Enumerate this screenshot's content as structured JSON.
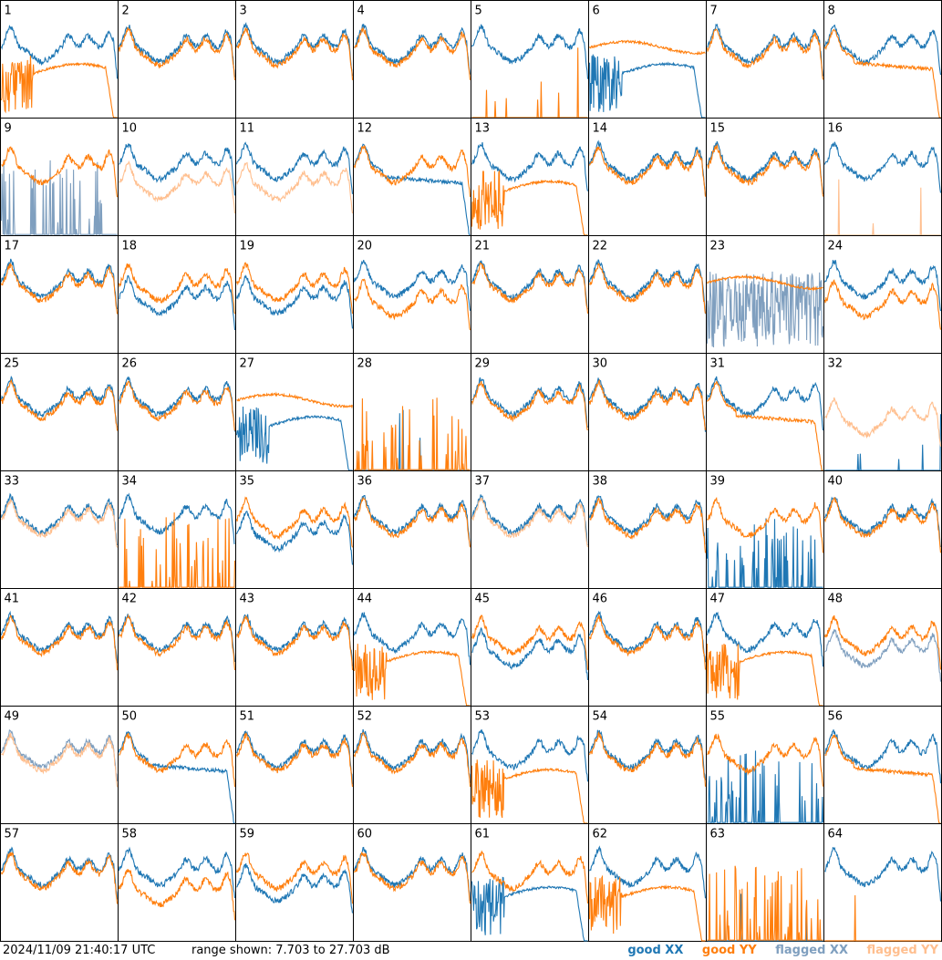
{
  "footer": {
    "timestamp": "2024/11/09 21:40:17 UTC",
    "range_text": "range shown: 7.703 to 27.703 dB"
  },
  "legend": [
    {
      "label": "good XX",
      "color": "#1f77b4"
    },
    {
      "label": "good YY",
      "color": "#ff7f0e"
    },
    {
      "label": "flagged XX",
      "color": "#7f9fbf"
    },
    {
      "label": "flagged YY",
      "color": "#ffbf8f"
    }
  ],
  "chart_data": {
    "type": "line",
    "grid": {
      "rows": 8,
      "cols": 8
    },
    "ylim": [
      7.703,
      27.703
    ],
    "y_units": "dB",
    "panels": [
      {
        "id": "1",
        "xx": "good",
        "yy": "good",
        "xx_shape": "typical",
        "yy_shape": "noisy-then-flat-drop"
      },
      {
        "id": "2",
        "xx": "good",
        "yy": "good",
        "xx_shape": "typical",
        "yy_shape": "typical"
      },
      {
        "id": "3",
        "xx": "good",
        "yy": "good",
        "xx_shape": "typical",
        "yy_shape": "typical"
      },
      {
        "id": "4",
        "xx": "good",
        "yy": "good",
        "xx_shape": "typical",
        "yy_shape": "typical"
      },
      {
        "id": "5",
        "xx": "good",
        "yy": "good",
        "xx_shape": "typical",
        "yy_shape": "dead"
      },
      {
        "id": "6",
        "xx": "good",
        "yy": "good",
        "xx_shape": "noisy-then-flat-drop",
        "yy_shape": "flat-high"
      },
      {
        "id": "7",
        "xx": "good",
        "yy": "good",
        "xx_shape": "typical",
        "yy_shape": "typical"
      },
      {
        "id": "8",
        "xx": "good",
        "yy": "good",
        "xx_shape": "typical",
        "yy_shape": "flat-drop"
      },
      {
        "id": "9",
        "xx": "flagged",
        "yy": "good",
        "xx_shape": "spiky-low",
        "yy_shape": "typical"
      },
      {
        "id": "10",
        "xx": "good",
        "yy": "flagged",
        "xx_shape": "typical",
        "yy_shape": "low-typical"
      },
      {
        "id": "11",
        "xx": "good",
        "yy": "flagged",
        "xx_shape": "typical",
        "yy_shape": "low-typical"
      },
      {
        "id": "12",
        "xx": "good",
        "yy": "good",
        "xx_shape": "flat-drop",
        "yy_shape": "typical"
      },
      {
        "id": "13",
        "xx": "good",
        "yy": "good",
        "xx_shape": "typical",
        "yy_shape": "noisy-then-flat-drop"
      },
      {
        "id": "14",
        "xx": "good",
        "yy": "good",
        "xx_shape": "typical",
        "yy_shape": "typical"
      },
      {
        "id": "15",
        "xx": "good",
        "yy": "good",
        "xx_shape": "typical",
        "yy_shape": "typical"
      },
      {
        "id": "16",
        "xx": "good",
        "yy": "flagged",
        "xx_shape": "typical",
        "yy_shape": "dead"
      },
      {
        "id": "17",
        "xx": "good",
        "yy": "good",
        "xx_shape": "typical",
        "yy_shape": "typical"
      },
      {
        "id": "18",
        "xx": "good",
        "yy": "good",
        "xx_shape": "low-typical",
        "yy_shape": "typical"
      },
      {
        "id": "19",
        "xx": "good",
        "yy": "good",
        "xx_shape": "low-typical",
        "yy_shape": "typical"
      },
      {
        "id": "20",
        "xx": "good",
        "yy": "good",
        "xx_shape": "typical",
        "yy_shape": "low-typical"
      },
      {
        "id": "21",
        "xx": "good",
        "yy": "good",
        "xx_shape": "typical",
        "yy_shape": "typical"
      },
      {
        "id": "22",
        "xx": "good",
        "yy": "good",
        "xx_shape": "typical",
        "yy_shape": "typical"
      },
      {
        "id": "23",
        "xx": "flagged",
        "yy": "good",
        "xx_shape": "spiky-mid",
        "yy_shape": "flat-high"
      },
      {
        "id": "24",
        "xx": "good",
        "yy": "good",
        "xx_shape": "typical",
        "yy_shape": "low-typical"
      },
      {
        "id": "25",
        "xx": "good",
        "yy": "good",
        "xx_shape": "typical",
        "yy_shape": "typical"
      },
      {
        "id": "26",
        "xx": "good",
        "yy": "good",
        "xx_shape": "typical",
        "yy_shape": "typical"
      },
      {
        "id": "27",
        "xx": "good",
        "yy": "good",
        "xx_shape": "noisy-then-flat-drop",
        "yy_shape": "flat-high"
      },
      {
        "id": "28",
        "xx": "good",
        "yy": "good",
        "xx_shape": "dead",
        "yy_shape": "spiky-low"
      },
      {
        "id": "29",
        "xx": "good",
        "yy": "good",
        "xx_shape": "typical",
        "yy_shape": "typical"
      },
      {
        "id": "30",
        "xx": "good",
        "yy": "good",
        "xx_shape": "typical",
        "yy_shape": "typical"
      },
      {
        "id": "31",
        "xx": "good",
        "yy": "good",
        "xx_shape": "typical",
        "yy_shape": "flat-drop"
      },
      {
        "id": "32",
        "xx": "good",
        "yy": "flagged",
        "xx_shape": "dead",
        "yy_shape": "low-typical"
      },
      {
        "id": "33",
        "xx": "good",
        "yy": "flagged",
        "xx_shape": "typical",
        "yy_shape": "typical"
      },
      {
        "id": "34",
        "xx": "good",
        "yy": "good",
        "xx_shape": "typical",
        "yy_shape": "spiky-low"
      },
      {
        "id": "35",
        "xx": "good",
        "yy": "good",
        "xx_shape": "low-typical",
        "yy_shape": "typical"
      },
      {
        "id": "36",
        "xx": "good",
        "yy": "good",
        "xx_shape": "typical",
        "yy_shape": "typical"
      },
      {
        "id": "37",
        "xx": "good",
        "yy": "flagged",
        "xx_shape": "typical",
        "yy_shape": "typical"
      },
      {
        "id": "38",
        "xx": "good",
        "yy": "good",
        "xx_shape": "typical",
        "yy_shape": "typical"
      },
      {
        "id": "39",
        "xx": "good",
        "yy": "good",
        "xx_shape": "spiky-low",
        "yy_shape": "typical"
      },
      {
        "id": "40",
        "xx": "good",
        "yy": "good",
        "xx_shape": "typical",
        "yy_shape": "typical"
      },
      {
        "id": "41",
        "xx": "good",
        "yy": "good",
        "xx_shape": "typical",
        "yy_shape": "typical"
      },
      {
        "id": "42",
        "xx": "good",
        "yy": "good",
        "xx_shape": "typical",
        "yy_shape": "typical"
      },
      {
        "id": "43",
        "xx": "good",
        "yy": "good",
        "xx_shape": "typical",
        "yy_shape": "typical"
      },
      {
        "id": "44",
        "xx": "good",
        "yy": "good",
        "xx_shape": "typical",
        "yy_shape": "noisy-then-flat-drop"
      },
      {
        "id": "45",
        "xx": "good",
        "yy": "good",
        "xx_shape": "low-typical",
        "yy_shape": "typical"
      },
      {
        "id": "46",
        "xx": "good",
        "yy": "good",
        "xx_shape": "typical",
        "yy_shape": "typical"
      },
      {
        "id": "47",
        "xx": "good",
        "yy": "good",
        "xx_shape": "typical",
        "yy_shape": "noisy-then-flat-drop"
      },
      {
        "id": "48",
        "xx": "flagged",
        "yy": "good",
        "xx_shape": "low-typical",
        "yy_shape": "typical"
      },
      {
        "id": "49",
        "xx": "flagged",
        "yy": "flagged",
        "xx_shape": "typical",
        "yy_shape": "typical"
      },
      {
        "id": "50",
        "xx": "good",
        "yy": "good",
        "xx_shape": "flat-drop",
        "yy_shape": "typical"
      },
      {
        "id": "51",
        "xx": "good",
        "yy": "good",
        "xx_shape": "typical",
        "yy_shape": "typical"
      },
      {
        "id": "52",
        "xx": "good",
        "yy": "good",
        "xx_shape": "typical",
        "yy_shape": "typical"
      },
      {
        "id": "53",
        "xx": "good",
        "yy": "good",
        "xx_shape": "typical",
        "yy_shape": "noisy-then-flat-drop"
      },
      {
        "id": "54",
        "xx": "good",
        "yy": "good",
        "xx_shape": "typical",
        "yy_shape": "typical"
      },
      {
        "id": "55",
        "xx": "good",
        "yy": "good",
        "xx_shape": "spiky-low",
        "yy_shape": "typical"
      },
      {
        "id": "56",
        "xx": "good",
        "yy": "good",
        "xx_shape": "typical",
        "yy_shape": "flat-drop"
      },
      {
        "id": "57",
        "xx": "good",
        "yy": "good",
        "xx_shape": "typical",
        "yy_shape": "typical"
      },
      {
        "id": "58",
        "xx": "good",
        "yy": "good",
        "xx_shape": "typical",
        "yy_shape": "low-typical"
      },
      {
        "id": "59",
        "xx": "good",
        "yy": "good",
        "xx_shape": "low-typical",
        "yy_shape": "typical"
      },
      {
        "id": "60",
        "xx": "good",
        "yy": "good",
        "xx_shape": "typical",
        "yy_shape": "typical"
      },
      {
        "id": "61",
        "xx": "good",
        "yy": "good",
        "xx_shape": "noisy-then-flat-drop",
        "yy_shape": "typical"
      },
      {
        "id": "62",
        "xx": "good",
        "yy": "good",
        "xx_shape": "typical",
        "yy_shape": "noisy-then-flat-drop"
      },
      {
        "id": "63",
        "xx": "good",
        "yy": "good",
        "xx_shape": "dead",
        "yy_shape": "spiky-low"
      },
      {
        "id": "64",
        "xx": "good",
        "yy": "good",
        "xx_shape": "typical",
        "yy_shape": "dead"
      }
    ]
  }
}
